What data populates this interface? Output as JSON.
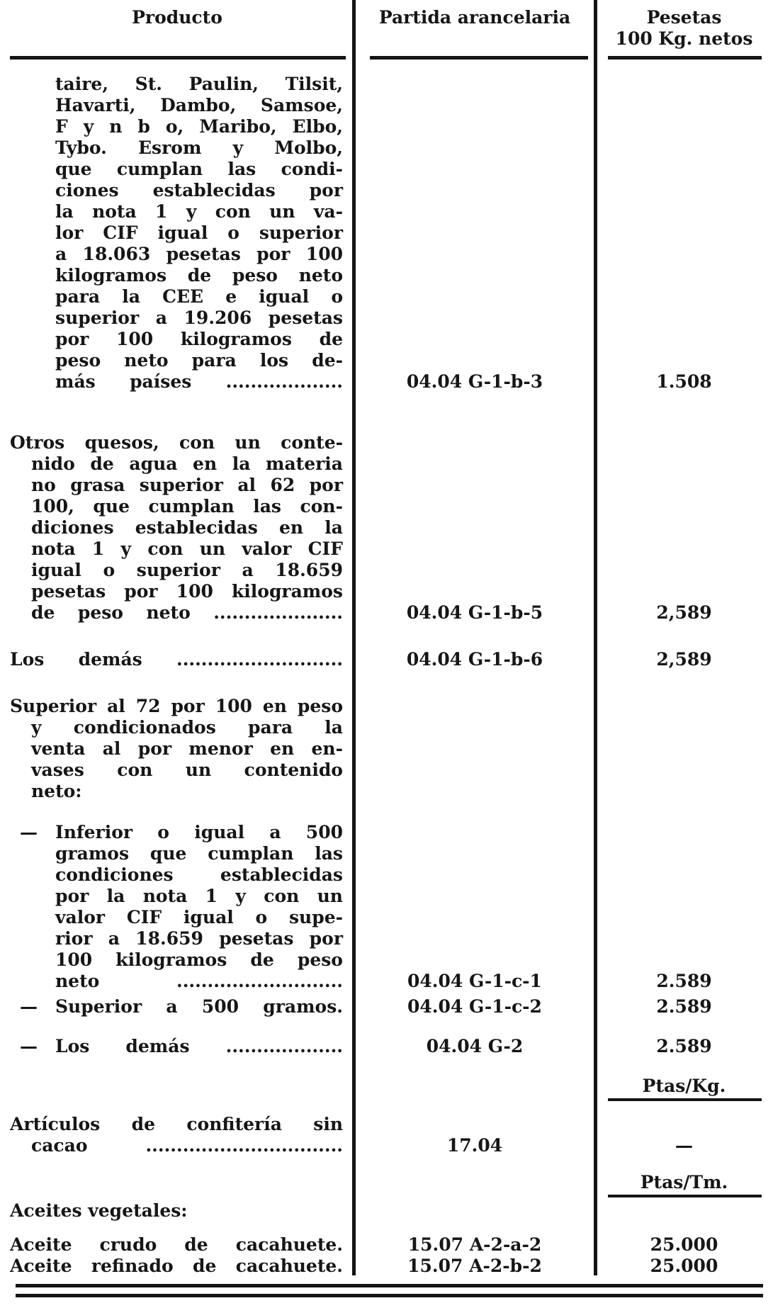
{
  "colors": {
    "ink": "#161616",
    "paper": "#ffffff"
  },
  "table": {
    "header": {
      "producto": "Producto",
      "partida": "Partida arancelaria",
      "pesetas_line1": "Pesetas",
      "pesetas_line2": "100 Kg. netos"
    },
    "rows": [
      {
        "kind": "item",
        "indent": "continuation",
        "lines": [
          "taire, St. Paulin, Tilsit,",
          "Havarti, Dambo, Samsoe,",
          "F y n b o, Maribo, Elbo,",
          "Tybo. Esrom y Molbo,",
          "que cumplan las condi-",
          "ciones establecidas por",
          "la nota 1 y con un va-",
          "lor CIF igual o superior",
          "a 18.063 pesetas por 100",
          "kilogramos de peso neto",
          "para la CEE e igual o",
          "superior a 19.206 pesetas",
          "por 100 kilogramos de",
          "peso neto para los de-",
          "más países ..................."
        ],
        "partida": "04.04 G-1-b-3",
        "pesetas": "1.508"
      },
      {
        "kind": "item",
        "indent": "hanging",
        "lines": [
          "Otros quesos, con un conte-",
          "nido de agua en la materia",
          "no grasa superior al 62 por",
          "100, que cumplan las con-",
          "diciones establecidas en la",
          "nota 1 y con un valor CIF",
          "igual o superior a 18.659",
          "pesetas por 100 kilogramos",
          "de peso neto ....................."
        ],
        "partida": "04.04 G-1-b-5",
        "pesetas": "2,589"
      },
      {
        "kind": "item",
        "indent": "hanging",
        "lines": [
          "Los demás ..........................."
        ],
        "partida": "04.04 G-1-b-6",
        "pesetas": "2,589"
      },
      {
        "kind": "item",
        "indent": "hanging",
        "lines": [
          "Superior al 72 por 100 en peso",
          "y condicionados para la",
          "venta al por menor en en-",
          "vases con un contenido",
          "neto:"
        ],
        "partida": "",
        "pesetas": ""
      },
      {
        "kind": "item",
        "indent": "dash",
        "bullet": "—",
        "lines": [
          "Inferior o igual a 500",
          "gramos que cumplan las",
          "condiciones establecidas",
          "por la nota 1 y con un",
          "valor CIF igual o supe-",
          "rior a 18.659 pesetas por",
          "100 kilogramos de peso",
          "neto ..........................."
        ],
        "partida": "04.04 G-1-c-1",
        "pesetas": "2.589"
      },
      {
        "kind": "item",
        "indent": "dash",
        "bullet": "—",
        "lines": [
          "Superior a 500 gramos."
        ],
        "partida": "04.04 G-1-c-2",
        "pesetas": "2.589"
      },
      {
        "kind": "item",
        "indent": "dash",
        "bullet": "—",
        "lines": [
          "Los demás ..................."
        ],
        "partida": "04.04 G-2",
        "pesetas": "2.589"
      },
      {
        "kind": "unit",
        "unit": "Ptas/Kg."
      },
      {
        "kind": "item",
        "indent": "hanging",
        "lines": [
          "Artículos de confitería sin",
          "cacao ................................"
        ],
        "partida": "17.04",
        "pesetas": "—"
      },
      {
        "kind": "unit",
        "unit": "Ptas/Tm."
      },
      {
        "kind": "item",
        "indent": "hanging",
        "plain": true,
        "lines": [
          "Aceites vegetales:"
        ],
        "partida": "",
        "pesetas": ""
      },
      {
        "kind": "item",
        "indent": "hanging",
        "lines": [
          "Aceite crudo de cacahuete."
        ],
        "partida": "15.07 A-2-a-2",
        "pesetas": "25.000"
      },
      {
        "kind": "item",
        "indent": "hanging",
        "lines": [
          "Aceite refinado de cacahuete."
        ],
        "partida": "15.07 A-2-b-2",
        "pesetas": "25.000"
      }
    ]
  }
}
